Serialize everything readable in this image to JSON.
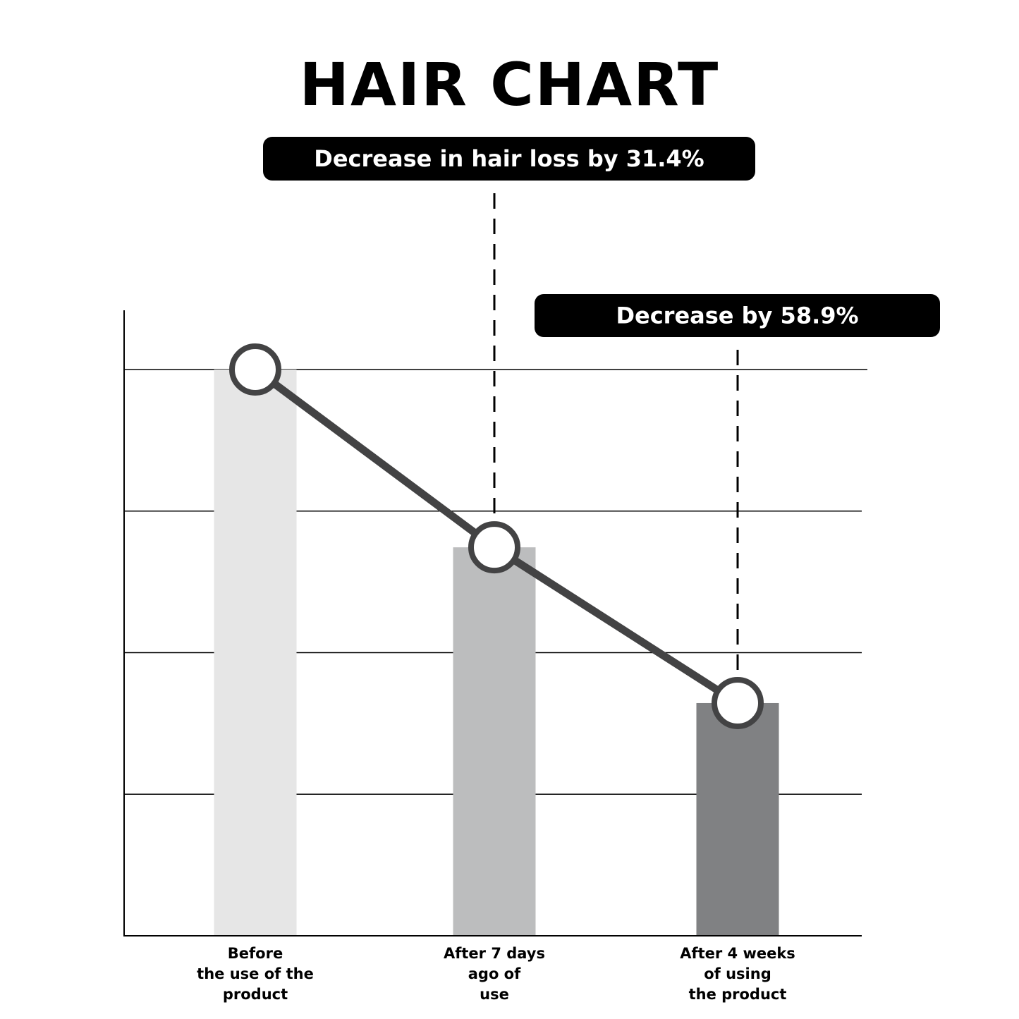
{
  "chart_data": {
    "type": "bar",
    "title": "HAIR CHART",
    "categories": [
      [
        "Before",
        "the use of the",
        "product"
      ],
      [
        "After 7 days",
        "ago of",
        "use"
      ],
      [
        "After 4 weeks",
        "of using",
        "the product"
      ]
    ],
    "values": [
      100,
      68.6,
      41.1
    ],
    "bar_colors": [
      "#e6e6e6",
      "#bcbdbe",
      "#808183"
    ],
    "line_overlay": true,
    "line_color": "#434344",
    "ylim": [
      0,
      100
    ],
    "grid": true,
    "xlabel": "",
    "ylabel": "",
    "annotations": [
      {
        "text": "Decrease in hair loss by 31.4%",
        "category_index": 1
      },
      {
        "text": "Decrease by 58.9%",
        "category_index": 2
      }
    ]
  }
}
